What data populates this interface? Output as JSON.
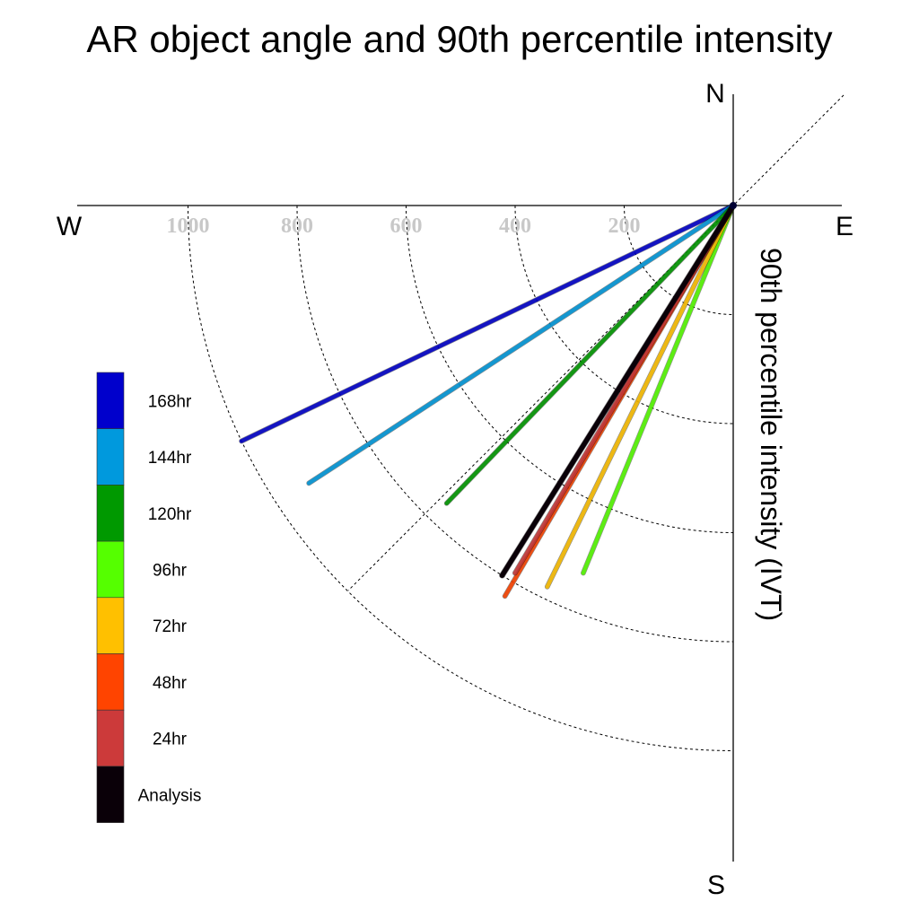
{
  "chart_data": {
    "type": "polar-line",
    "title": "AR object angle and 90th percentile intensity",
    "axis_label": "90th percentile intensity (IVT)",
    "compass": {
      "north": "N",
      "south": "S",
      "east": "E",
      "west": "W"
    },
    "radial_ticks": [
      "200",
      "400",
      "600",
      "800",
      "1000"
    ],
    "radial_tick_values": [
      200,
      400,
      600,
      800,
      1000
    ],
    "radial_max": 1000,
    "grid": "dotted",
    "legend_position": "left",
    "series": [
      {
        "name": "168hr",
        "color": "#0000cc",
        "angle_deg": 205.6,
        "intensity": 1000
      },
      {
        "name": "144hr",
        "color": "#0099dd",
        "angle_deg": 213.2,
        "intensity": 930
      },
      {
        "name": "120hr",
        "color": "#009900",
        "angle_deg": 226.1,
        "intensity": 758
      },
      {
        "name": "96hr",
        "color": "#55ff00",
        "angle_deg": 247.8,
        "intensity": 728
      },
      {
        "name": "72hr",
        "color": "#ffc000",
        "angle_deg": 244.0,
        "intensity": 778
      },
      {
        "name": "48hr",
        "color": "#ff4400",
        "angle_deg": 239.7,
        "intensity": 830
      },
      {
        "name": "24hr",
        "color": "#cc3a3a",
        "angle_deg": 239.3,
        "intensity": 784
      },
      {
        "name": "Analysis",
        "color": "#0a0008",
        "angle_deg": 238.0,
        "intensity": 800
      }
    ]
  }
}
